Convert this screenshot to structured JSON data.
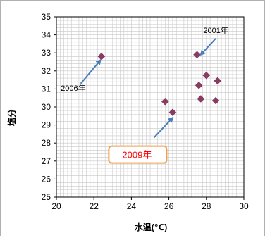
{
  "chart_data": {
    "type": "scatter",
    "xlabel": "水温(℃)",
    "ylabel": "塩分",
    "xlim": [
      20,
      30
    ],
    "ylim": [
      25,
      35
    ],
    "x_ticks": [
      "20",
      "22",
      "24",
      "26",
      "28",
      "30"
    ],
    "y_ticks": [
      "25",
      "26",
      "27",
      "28",
      "29",
      "30",
      "31",
      "32",
      "33",
      "34",
      "35"
    ],
    "grid": true,
    "series": [
      {
        "color": "#8b3a62",
        "marker": "diamond",
        "points": [
          {
            "x": 22.4,
            "y": 32.8
          },
          {
            "x": 25.8,
            "y": 30.3
          },
          {
            "x": 26.2,
            "y": 29.7
          },
          {
            "x": 27.5,
            "y": 32.9
          },
          {
            "x": 27.6,
            "y": 31.2
          },
          {
            "x": 27.7,
            "y": 30.45
          },
          {
            "x": 28.0,
            "y": 31.75
          },
          {
            "x": 28.5,
            "y": 30.35
          },
          {
            "x": 28.6,
            "y": 31.45
          }
        ]
      }
    ],
    "annotations": [
      {
        "id": "a2006",
        "text": "2006年",
        "text_x": 20.9,
        "text_y": 30.9,
        "arrow_from": [
          21.3,
          31.3
        ],
        "arrow_to": [
          22.35,
          32.6
        ],
        "boxed": false
      },
      {
        "id": "a2001",
        "text": "2001年",
        "text_x": 28.5,
        "text_y": 34.1,
        "arrow_from": [
          28.5,
          33.8
        ],
        "arrow_to": [
          27.7,
          32.9
        ],
        "boxed": false
      },
      {
        "id": "a2009",
        "text": "2009年",
        "text_x": 24.3,
        "text_y": 27.2,
        "arrow_from": [
          25.2,
          28.3
        ],
        "arrow_to": [
          26.2,
          29.4
        ],
        "boxed": true
      }
    ],
    "colors": {
      "axis": "#000000",
      "grid": "#c8c8c8",
      "label_box_border": "#f0a050",
      "label_box_text": "#ff0000",
      "arrow": "#4a7ebb"
    }
  }
}
